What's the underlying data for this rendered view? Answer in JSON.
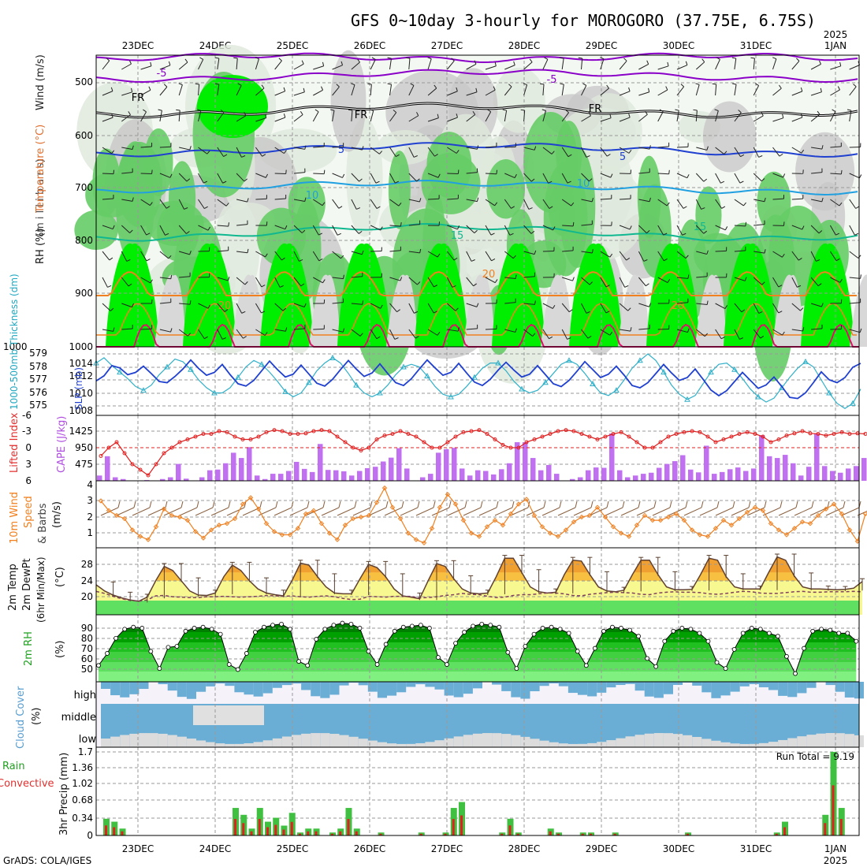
{
  "title": "GFS 0~10day 3-hourly for MOROGORO (37.75E, 6.75S)",
  "footer": "GrADS: COLA/IGES",
  "dates": [
    "23DEC",
    "24DEC",
    "25DEC",
    "26DEC",
    "27DEC",
    "28DEC",
    "29DEC",
    "30DEC",
    "31DEC",
    "1JAN"
  ],
  "year_label": "2025",
  "colors": {
    "grid": "#999999",
    "green_bright": "#00ee00",
    "green_mid": "#66cc66",
    "gray_fill": "#c8c8c8",
    "purple": "#8a00c8",
    "blue": "#2040d0",
    "cyan": "#30b0c8",
    "orange": "#f08020",
    "red": "#e02020",
    "cloud_blue": "#6aaed6"
  },
  "panels": {
    "upper_air": {
      "ylabels": [
        "Wind (m/s)",
        "Temperature (°C)",
        "RH (%)",
        "(m i l l i b a r s)"
      ],
      "yticks": [
        "500",
        "600",
        "700",
        "800",
        "900",
        "1000"
      ],
      "isotherm_labels": [
        "-5",
        "FR",
        "5",
        "10",
        "15",
        "20"
      ]
    },
    "thickness": {
      "ylabel_left": "1000-500mb Thickness (dm)",
      "ylabel_right": "SLP (mb)",
      "yticks_left": [
        "579",
        "578",
        "577",
        "576",
        "575"
      ],
      "yticks_right": [
        "1014",
        "1012",
        "1010",
        "1008"
      ]
    },
    "cape": {
      "ylabel_left": "Lifted Index",
      "ylabel_right": "CAPE (J/kg)",
      "yticks_left": [
        "-6",
        "-3",
        "0",
        "3",
        "6"
      ],
      "yticks_right": [
        "1425",
        "950",
        "475"
      ]
    },
    "wind10m": {
      "ylabel": [
        "10m Wind",
        "Speed",
        "& Barbs",
        "(m/s)"
      ],
      "yticks": [
        "4",
        "3",
        "2",
        "1"
      ]
    },
    "temp2m": {
      "ylabel": [
        "2m Temp",
        "2m DewPt",
        "(6hr Min/Max)",
        "(°C)"
      ],
      "yticks": [
        "28",
        "24",
        "20"
      ]
    },
    "rh2m": {
      "ylabel": [
        "2m RH",
        "(%)"
      ],
      "yticks": [
        "90",
        "80",
        "70",
        "60",
        "50"
      ]
    },
    "cloud": {
      "ylabel": [
        "Cloud Cover",
        "(%)"
      ],
      "levels": [
        "high",
        "middle",
        "low"
      ]
    },
    "precip": {
      "ylabel": [
        "Total / Rain",
        "Convective",
        "3hr Precip (mm)"
      ],
      "yticks": [
        "1.7",
        "1.36",
        "1.02",
        "0.68",
        "0.34",
        "0"
      ],
      "run_total": "Run Total = 9.19"
    }
  },
  "chart_data": {
    "type": "meteogram",
    "x_unit": "3-hourly steps from 22DEC 12Z",
    "thickness_dm": [
      578.3,
      578.7,
      578.1,
      577.6,
      577.1,
      576.5,
      576.2,
      576.6,
      577.4,
      578.0,
      578.6,
      578.4,
      577.8,
      577.0,
      576.4,
      576.0,
      576.0,
      576.4,
      577.2,
      578.0,
      578.5,
      578.2,
      577.6,
      576.9,
      576.1,
      575.7,
      576.0,
      576.8,
      577.7,
      578.3,
      578.7,
      578.3,
      577.5,
      576.6,
      576.0,
      575.7,
      576.0,
      576.6,
      577.4,
      578.0,
      578.2,
      578.0,
      577.3,
      576.5,
      575.9,
      575.7,
      575.9,
      576.5,
      577.2,
      577.9,
      578.3,
      578.3,
      577.7,
      576.9,
      576.3,
      576.0,
      576.2,
      576.8,
      577.5,
      578.2,
      578.5,
      578.2,
      577.5,
      576.7,
      576.0,
      575.8,
      576.2,
      577.0,
      577.9,
      578.5,
      579.0,
      578.5,
      577.6,
      576.6,
      575.9,
      575.5,
      575.8,
      576.7,
      577.6,
      578.2,
      578.3,
      577.8,
      577.1,
      576.3,
      575.7,
      575.3,
      575.6,
      576.4,
      577.2,
      577.9,
      578.4,
      578.0,
      577.0,
      576.0,
      575.2,
      574.8,
      575.2,
      576.3
    ],
    "slp_mb": [
      1010.9,
      1011.8,
      1013.6,
      1013.2,
      1012.0,
      1012.4,
      1013.5,
      1012.2,
      1010.8,
      1010.6,
      1011.7,
      1013.0,
      1014.6,
      1013.1,
      1011.9,
      1012.4,
      1013.8,
      1012.0,
      1010.4,
      1010.0,
      1011.0,
      1012.7,
      1014.4,
      1012.9,
      1011.6,
      1012.1,
      1013.7,
      1012.1,
      1010.5,
      1010.0,
      1011.2,
      1012.9,
      1014.5,
      1013.0,
      1011.7,
      1012.3,
      1013.9,
      1012.2,
      1010.6,
      1010.1,
      1011.3,
      1013.0,
      1014.6,
      1013.2,
      1011.9,
      1012.4,
      1014.0,
      1012.3,
      1010.7,
      1010.1,
      1011.2,
      1012.8,
      1014.2,
      1012.8,
      1011.6,
      1012.1,
      1013.6,
      1012.0,
      1010.4,
      1009.9,
      1011.0,
      1012.6,
      1014.3,
      1012.9,
      1011.5,
      1012.1,
      1013.5,
      1011.9,
      1010.1,
      1009.7,
      1010.6,
      1012.2,
      1013.8,
      1012.3,
      1011.0,
      1011.5,
      1013.0,
      1011.2,
      1009.3,
      1008.3,
      1009.2,
      1010.8,
      1012.4,
      1011.0,
      1009.6,
      1010.2,
      1011.6,
      1009.9,
      1008.0,
      1007.8,
      1008.8,
      1010.6,
      1012.5,
      1011.1,
      1010.6,
      1011.5,
      1013.3,
      1014.0
    ],
    "lifted_index": [
      1.5,
      0,
      -1,
      1,
      3,
      4,
      5,
      3,
      1,
      0,
      -1,
      -1.5,
      -2,
      -2.5,
      -2.5,
      -3,
      -2.8,
      -2,
      -1.5,
      -1.5,
      -2,
      -2.8,
      -3.2,
      -3,
      -2.5,
      -2.5,
      -2.6,
      -3,
      -3.2,
      -3,
      -2,
      -1,
      0,
      0.5,
      0,
      -1.5,
      -2.2,
      -2.5,
      -3,
      -2.5,
      -2,
      -1,
      0,
      0,
      -1,
      -2,
      -2.8,
      -3,
      -3.2,
      -2.5,
      -1.5,
      -0.5,
      0,
      0,
      -1,
      -1.5,
      -2,
      -2.5,
      -3,
      -3.2,
      -3,
      -2.5,
      -2,
      -1.5,
      -2,
      -2.5,
      -2.8,
      -2,
      -1,
      0,
      0,
      -1,
      -2,
      -2.5,
      -2.8,
      -3,
      -2.8,
      -2,
      -1,
      -1.5,
      -2,
      -2.5,
      -2.8,
      -2.5,
      -2,
      -1,
      -1.5,
      -2.2,
      -2.6,
      -3,
      -2.6,
      -2.5,
      -2.2,
      -2.5,
      -2.8,
      -2.5,
      -2.6,
      -2.5
    ],
    "cape_jkg": [
      150,
      700,
      100,
      50,
      0,
      0,
      20,
      0,
      50,
      100,
      480,
      60,
      0,
      100,
      300,
      320,
      500,
      800,
      650,
      960,
      150,
      50,
      200,
      200,
      280,
      540,
      340,
      250,
      1050,
      310,
      300,
      270,
      150,
      280,
      360,
      400,
      550,
      660,
      930,
      350,
      0,
      100,
      200,
      800,
      900,
      940,
      350,
      150,
      300,
      280,
      180,
      330,
      500,
      1100,
      1100,
      650,
      300,
      450,
      200,
      0,
      50,
      100,
      300,
      380,
      370,
      1350,
      300,
      100,
      150,
      200,
      230,
      370,
      480,
      560,
      730,
      320,
      240,
      1000,
      200,
      250,
      330,
      380,
      280,
      350,
      1300,
      700,
      650,
      740,
      500,
      150,
      400,
      1350,
      420,
      280,
      230,
      350,
      420,
      650
    ],
    "wind10m_speed": [
      3.0,
      2.4,
      2.1,
      1.9,
      1.2,
      0.8,
      0.6,
      1.4,
      2.5,
      2.1,
      2.0,
      1.8,
      1.1,
      0.7,
      1.2,
      1.5,
      1.6,
      1.9,
      2.8,
      3.2,
      2.5,
      1.6,
      1.1,
      0.9,
      0.9,
      1.3,
      2.2,
      2.4,
      1.6,
      1.0,
      0.6,
      1.5,
      1.9,
      2.0,
      2.1,
      2.9,
      3.8,
      2.6,
      1.9,
      1.0,
      0.6,
      0.4,
      1.3,
      2.6,
      3.4,
      2.8,
      1.8,
      1.0,
      0.8,
      1.4,
      1.8,
      1.5,
      2.2,
      2.8,
      3.1,
      2.1,
      1.4,
      1.0,
      0.8,
      1.2,
      1.7,
      2.0,
      2.1,
      2.6,
      2.0,
      1.4,
      1.0,
      0.8,
      1.5,
      2.1,
      1.8,
      1.8,
      2.0,
      2.2,
      1.8,
      1.2,
      0.9,
      0.8,
      1.3,
      1.8,
      1.5,
      1.9,
      2.3,
      2.6,
      2.4,
      1.6,
      1.2,
      0.9,
      1.3,
      1.7,
      1.6,
      2.1,
      2.5,
      2.8,
      2.2,
      1.2,
      0.5,
      2.2
    ],
    "temp2m_c": [
      23.0,
      21.5,
      20.5,
      19.8,
      19.3,
      19.0,
      20.0,
      24.0,
      27.5,
      26.5,
      24.0,
      21.5,
      20.5,
      20.4,
      21.0,
      25.0,
      27.8,
      26.5,
      24.0,
      22.0,
      21.0,
      20.6,
      20.3,
      24.0,
      28.3,
      27.8,
      25.0,
      22.5,
      21.0,
      20.8,
      20.8,
      24.5,
      28.0,
      27.2,
      25.0,
      22.0,
      20.3,
      20.0,
      19.6,
      24.0,
      28.2,
      27.5,
      24.5,
      22.0,
      21.0,
      20.8,
      21.0,
      25.0,
      29.5,
      29.5,
      26.0,
      22.5,
      21.3,
      21.0,
      21.2,
      25.5,
      29.0,
      28.8,
      25.5,
      22.5,
      21.5,
      21.3,
      21.7,
      25.5,
      29.0,
      29.0,
      25.5,
      22.5,
      21.8,
      21.8,
      21.9,
      25.5,
      29.5,
      29.0,
      25.0,
      22.5,
      22.0,
      22.0,
      22.0,
      26.0,
      29.8,
      29.0,
      25.2,
      22.5,
      22.0,
      22.0,
      21.9,
      21.8,
      21.9,
      22.2,
      23.8
    ],
    "dewpt2m_c": [
      21.4,
      20.9,
      20.2,
      19.6,
      19.2,
      19.0,
      19.3,
      20.3,
      20.4,
      20.1,
      20.0,
      19.9,
      19.9,
      20.1,
      20.1,
      20.2,
      20.1,
      20.0,
      20.1,
      20.2,
      20.4,
      20.3,
      20.2,
      20.3,
      20.1,
      20.0,
      20.2,
      20.3,
      20.1,
      19.7,
      19.4,
      19.5,
      20.2,
      20.1,
      20.0,
      20.2,
      20.2,
      20.2,
      19.8,
      19.9,
      20.1,
      20.4,
      20.6,
      20.9,
      20.7,
      20.6,
      20.2,
      19.9,
      20.0,
      20.4,
      20.6,
      20.6,
      20.8,
      21.0,
      21.0,
      20.8,
      20.4,
      20.3,
      20.7,
      20.9,
      21.1,
      21.2,
      21.1,
      21.0,
      20.7,
      20.6,
      21.0,
      21.2,
      21.3,
      21.2,
      21.2,
      21.1,
      20.8,
      20.7,
      20.9,
      21.2,
      21.4,
      21.3,
      21.0,
      20.9,
      20.9,
      21.1,
      21.3,
      21.4,
      21.2,
      21.2,
      21.3,
      21.3,
      21.3,
      21.4,
      21.3
    ],
    "rh2m_pct": [
      56,
      68,
      83,
      92,
      94,
      93,
      70,
      53,
      74,
      75,
      90,
      93,
      94,
      92,
      87,
      57,
      52,
      68,
      89,
      94,
      96,
      97,
      92,
      60,
      56,
      82,
      92,
      96,
      98,
      97,
      93,
      70,
      57,
      77,
      90,
      94,
      95,
      96,
      93,
      64,
      57,
      78,
      89,
      95,
      97,
      96,
      94,
      69,
      53,
      75,
      87,
      93,
      94,
      92,
      88,
      70,
      56,
      73,
      90,
      94,
      93,
      91,
      85,
      63,
      55,
      80,
      90,
      93,
      92,
      88,
      80,
      59,
      53,
      72,
      88,
      93,
      92,
      88,
      85,
      65,
      48,
      73,
      90,
      92,
      91,
      88,
      88,
      80
    ]
  }
}
